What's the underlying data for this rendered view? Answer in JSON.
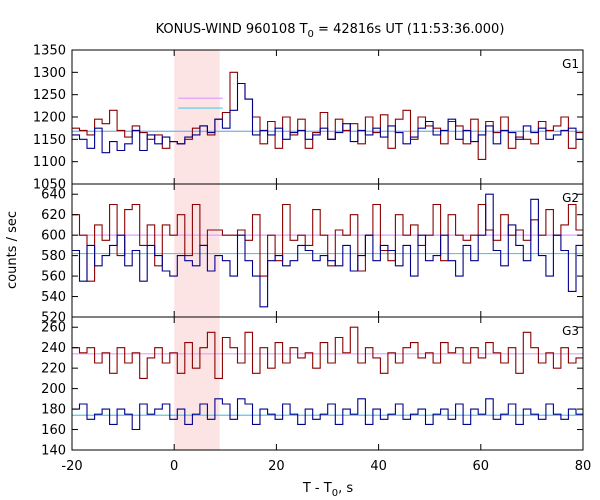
{
  "chart_data": {
    "type": "line",
    "title": "KONUS-WIND 960108 T",
    "title_sub": "0",
    "title_rest": " = 42816s UT (11:53:36.000)",
    "xlabel": "T - T",
    "xlabel_sub": "0",
    "xlabel_rest": ", s",
    "ylabel": "counts / sec",
    "xlim": [
      -20,
      80
    ],
    "xticks": [
      "-20",
      "0",
      "20",
      "40",
      "60",
      "80"
    ],
    "bin_width": 1.472,
    "bin_start": -20,
    "highlight_interval": [
      0,
      8.9
    ],
    "colors": {
      "highlight": "#fde4e4",
      "series_red": "#8b0000",
      "series_blue": "#00008b",
      "level_red": "#e0a0ff",
      "level_blue": "#55c8e8",
      "axis": "#000000"
    },
    "panels": [
      {
        "label": "G1",
        "ylim": [
          1050,
          1350
        ],
        "yticks": [
          "1050",
          "1100",
          "1150",
          "1200",
          "1250",
          "1300",
          "1350"
        ],
        "series": [
          {
            "color": "red",
            "values": [
              1175,
              1170,
              1160,
              1195,
              1185,
              1215,
              1170,
              1155,
              1180,
              1165,
              1150,
              1160,
              1130,
              1145,
              1140,
              1150,
              1175,
              1180,
              1160,
              1195,
              1210,
              1300,
              1275,
              1240,
              1200,
              1140,
              1190,
              1130,
              1200,
              1160,
              1195,
              1130,
              1165,
              1210,
              1150,
              1195,
              1170,
              1185,
              1140,
              1200,
              1165,
              1205,
              1130,
              1195,
              1215,
              1150,
              1200,
              1180,
              1175,
              1140,
              1190,
              1180,
              1140,
              1195,
              1105,
              1190,
              1165,
              1200,
              1130,
              1155,
              1150,
              1140,
              1190,
              1170,
              1180,
              1200,
              1130,
              1165,
              1180
            ]
          },
          {
            "color": "blue",
            "values": [
              1160,
              1150,
              1130,
              1175,
              1120,
              1145,
              1125,
              1140,
              1170,
              1125,
              1160,
              1140,
              1155,
              1145,
              1140,
              1155,
              1160,
              1180,
              1165,
              1195,
              1175,
              1215,
              1275,
              1240,
              1160,
              1170,
              1160,
              1175,
              1150,
              1165,
              1170,
              1150,
              1160,
              1175,
              1150,
              1165,
              1185,
              1145,
              1170,
              1160,
              1175,
              1155,
              1180,
              1165,
              1140,
              1155,
              1175,
              1190,
              1160,
              1170,
              1195,
              1150,
              1170,
              1145,
              1160,
              1180,
              1140,
              1170,
              1165,
              1150,
              1180,
              1165,
              1175,
              1150,
              1160,
              1170,
              1175,
              1150,
              1195
            ]
          }
        ],
        "levels": [
          {
            "color": "red",
            "value": 1168,
            "x": [
              -20,
              80
            ]
          },
          {
            "color": "blue",
            "value": 1168,
            "x": [
              -20,
              80
            ]
          },
          {
            "color": "red",
            "value": 1242,
            "x": [
              0.8,
              9.5
            ]
          },
          {
            "color": "blue",
            "value": 1220,
            "x": [
              0.8,
              9.5
            ]
          }
        ]
      },
      {
        "label": "G2",
        "ylim": [
          520,
          650
        ],
        "yticks": [
          "520",
          "540",
          "560",
          "580",
          "600",
          "620",
          "640"
        ],
        "series": [
          {
            "color": "red",
            "values": [
              620,
              600,
              555,
              610,
              595,
              630,
              580,
              625,
              630,
              590,
              610,
              570,
              610,
              600,
              620,
              580,
              630,
              590,
              605,
              605,
              600,
              600,
              605,
              595,
              620,
              560,
              600,
              575,
              630,
              595,
              600,
              590,
              625,
              600,
              570,
              605,
              600,
              620,
              565,
              600,
              630,
              585,
              575,
              620,
              600,
              610,
              590,
              600,
              630,
              575,
              620,
              600,
              595,
              600,
              630,
              605,
              595,
              620,
              600,
              605,
              595,
              615,
              600,
              625,
              600,
              610,
              630,
              605,
              600
            ]
          },
          {
            "color": "blue",
            "values": [
              585,
              555,
              590,
              570,
              580,
              590,
              600,
              570,
              585,
              555,
              590,
              580,
              565,
              560,
              580,
              575,
              570,
              590,
              565,
              580,
              575,
              560,
              600,
              575,
              560,
              530,
              575,
              580,
              570,
              575,
              590,
              585,
              575,
              580,
              575,
              570,
              590,
              565,
              580,
              600,
              575,
              590,
              585,
              570,
              590,
              560,
              600,
              575,
              580,
              600,
              575,
              560,
              590,
              575,
              600,
              640,
              585,
              570,
              610,
              590,
              575,
              635,
              580,
              560,
              600,
              585,
              545,
              590,
              575
            ]
          }
        ],
        "levels": [
          {
            "color": "red",
            "value": 600,
            "x": [
              -20,
              80
            ]
          },
          {
            "color": "blue",
            "value": 582,
            "x": [
              -20,
              80
            ]
          }
        ]
      },
      {
        "label": "G3",
        "ylim": [
          140,
          270
        ],
        "yticks": [
          "140",
          "160",
          "180",
          "200",
          "220",
          "240",
          "260"
        ],
        "series": [
          {
            "color": "red",
            "values": [
              240,
              235,
              240,
              225,
              235,
              215,
              240,
              225,
              235,
              210,
              230,
              240,
              225,
              235,
              215,
              245,
              220,
              240,
              255,
              210,
              250,
              240,
              225,
              255,
              215,
              240,
              220,
              245,
              225,
              240,
              230,
              235,
              220,
              245,
              225,
              250,
              235,
              260,
              225,
              240,
              230,
              215,
              235,
              225,
              240,
              245,
              230,
              235,
              225,
              245,
              235,
              240,
              225,
              240,
              230,
              245,
              235,
              225,
              240,
              215,
              255,
              240,
              225,
              235,
              220,
              240,
              225,
              230,
              220
            ]
          },
          {
            "color": "blue",
            "values": [
              180,
              185,
              170,
              175,
              180,
              165,
              180,
              175,
              160,
              185,
              175,
              180,
              185,
              170,
              180,
              165,
              175,
              185,
              170,
              190,
              185,
              170,
              190,
              185,
              165,
              180,
              175,
              170,
              185,
              175,
              165,
              180,
              170,
              175,
              185,
              165,
              180,
              175,
              190,
              165,
              180,
              170,
              175,
              185,
              170,
              175,
              180,
              165,
              175,
              180,
              170,
              185,
              165,
              180,
              175,
              190,
              170,
              175,
              185,
              165,
              180,
              175,
              170,
              185,
              175,
              170,
              180,
              175,
              180
            ]
          }
        ],
        "levels": [
          {
            "color": "red",
            "value": 234,
            "x": [
              -20,
              80
            ]
          },
          {
            "color": "blue",
            "value": 174,
            "x": [
              -20,
              80
            ]
          }
        ]
      }
    ]
  }
}
